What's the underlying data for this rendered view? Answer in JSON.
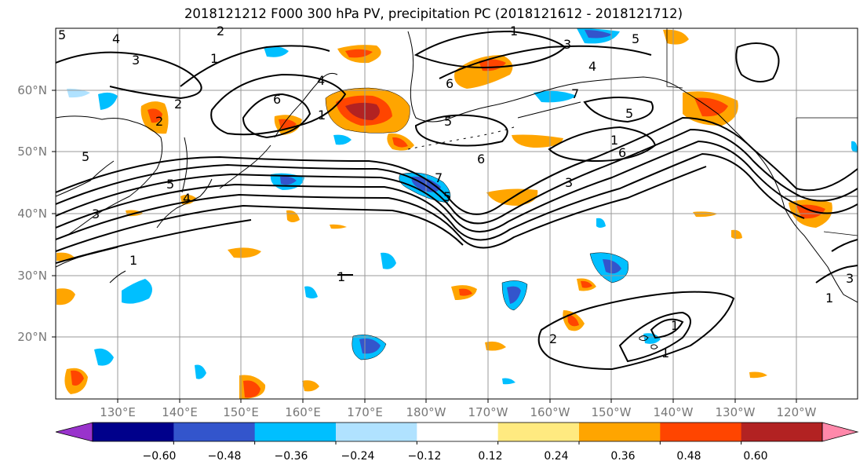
{
  "title": "2018121212 F000 300 hPa PV, precipitation PC (2018121612 - 2018121712)",
  "map": {
    "lat_labels": [
      "60°N",
      "50°N",
      "40°N",
      "30°N",
      "20°N"
    ],
    "lon_labels": [
      "130°E",
      "140°E",
      "150°E",
      "160°E",
      "170°E",
      "180°W",
      "170°W",
      "160°W",
      "150°W",
      "140°W",
      "130°W",
      "120°W"
    ],
    "contour_labels": [
      "5",
      "4",
      "3",
      "1",
      "2",
      "2",
      "6",
      "4",
      "1",
      "5",
      "2",
      "3",
      "4",
      "6",
      "5",
      "7",
      "6",
      "5",
      "1",
      "3",
      "5",
      "7",
      "5",
      "3",
      "1",
      "1",
      "2",
      "1",
      "1",
      "1",
      "1",
      "3",
      "6",
      "5",
      "4"
    ]
  },
  "colorbar": {
    "tick_labels": [
      "−0.60",
      "−0.48",
      "−0.36",
      "−0.24",
      "−0.12",
      "0.12",
      "0.24",
      "0.36",
      "0.48",
      "0.60"
    ],
    "colors": [
      "#9933cc",
      "#00008b",
      "#3355cc",
      "#00bfff",
      "#b0e2ff",
      "#ffffff",
      "#ffea80",
      "#ffa500",
      "#ff4500",
      "#b22222",
      "#ff88aa"
    ]
  }
}
